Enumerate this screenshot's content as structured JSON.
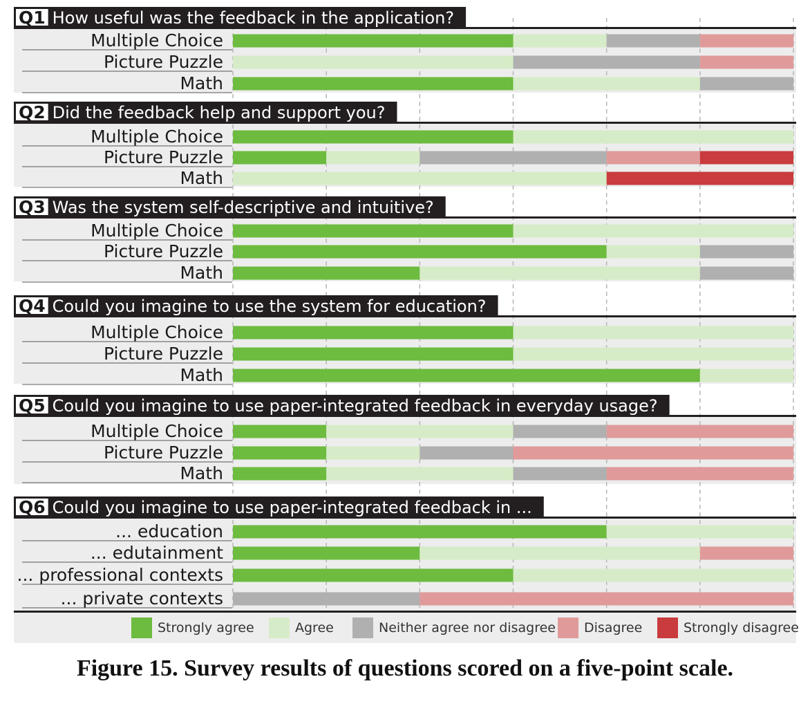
{
  "chart_data": {
    "type": "bar",
    "stacked": true,
    "orientation": "horizontal",
    "xlim": [
      0,
      6
    ],
    "grid": true,
    "legend_placement": "bottom",
    "categories_scale": [
      "Strongly agree",
      "Agree",
      "Neither agree nor disagree",
      "Disagree",
      "Strongly disagree"
    ],
    "colors": {
      "Strongly agree": "#6dbb3f",
      "Agree": "#d6ecc8",
      "Neither agree nor disagree": "#b0b0b0",
      "Disagree": "#e09a9a",
      "Strongly disagree": "#c93b3d"
    },
    "groups": [
      {
        "id": "Q1",
        "question": "How useful was the feedback in the application?",
        "rows": [
          {
            "label": "Multiple Choice",
            "values": [
              3,
              1,
              1,
              1,
              0
            ]
          },
          {
            "label": "Picture Puzzle",
            "values": [
              0,
              3,
              2,
              1,
              0
            ]
          },
          {
            "label": "Math",
            "values": [
              3,
              2,
              1,
              0,
              0
            ]
          }
        ]
      },
      {
        "id": "Q2",
        "question": "Did the feedback help and support you?",
        "rows": [
          {
            "label": "Multiple Choice",
            "values": [
              3,
              3,
              0,
              0,
              0
            ]
          },
          {
            "label": "Picture Puzzle",
            "values": [
              1,
              1,
              2,
              1,
              1
            ]
          },
          {
            "label": "Math",
            "values": [
              0,
              4,
              0,
              0,
              2
            ]
          }
        ]
      },
      {
        "id": "Q3",
        "question": "Was the system self-descriptive and intuitive?",
        "rows": [
          {
            "label": "Multiple Choice",
            "values": [
              3,
              3,
              0,
              0,
              0
            ]
          },
          {
            "label": "Picture Puzzle",
            "values": [
              4,
              1,
              1,
              0,
              0
            ]
          },
          {
            "label": "Math",
            "values": [
              2,
              3,
              1,
              0,
              0
            ]
          }
        ]
      },
      {
        "id": "Q4",
        "question": "Could you imagine to use the system for education?",
        "rows": [
          {
            "label": "Multiple Choice",
            "values": [
              3,
              3,
              0,
              0,
              0
            ]
          },
          {
            "label": "Picture Puzzle",
            "values": [
              3,
              3,
              0,
              0,
              0
            ]
          },
          {
            "label": "Math",
            "values": [
              5,
              1,
              0,
              0,
              0
            ]
          }
        ]
      },
      {
        "id": "Q5",
        "question": "Could you imagine to use paper-integrated feedback in everyday usage?",
        "rows": [
          {
            "label": "Multiple Choice",
            "values": [
              1,
              2,
              1,
              2,
              0
            ]
          },
          {
            "label": "Picture Puzzle",
            "values": [
              1,
              1,
              1,
              3,
              0
            ]
          },
          {
            "label": "Math",
            "values": [
              1,
              2,
              1,
              2,
              0
            ]
          }
        ]
      },
      {
        "id": "Q6",
        "question": "Could you imagine to use paper-integrated feedback in ...",
        "rows": [
          {
            "label": "... education",
            "values": [
              4,
              2,
              0,
              0,
              0
            ]
          },
          {
            "label": "... edutainment",
            "values": [
              2,
              3,
              0,
              1,
              0
            ]
          },
          {
            "label": "... professional contexts",
            "values": [
              3,
              3,
              0,
              0,
              0
            ]
          },
          {
            "label": "... private contexts",
            "values": [
              0,
              0,
              2,
              4,
              0
            ]
          }
        ]
      }
    ]
  },
  "caption": "Figure 15. Survey results of questions scored on a five-point scale."
}
